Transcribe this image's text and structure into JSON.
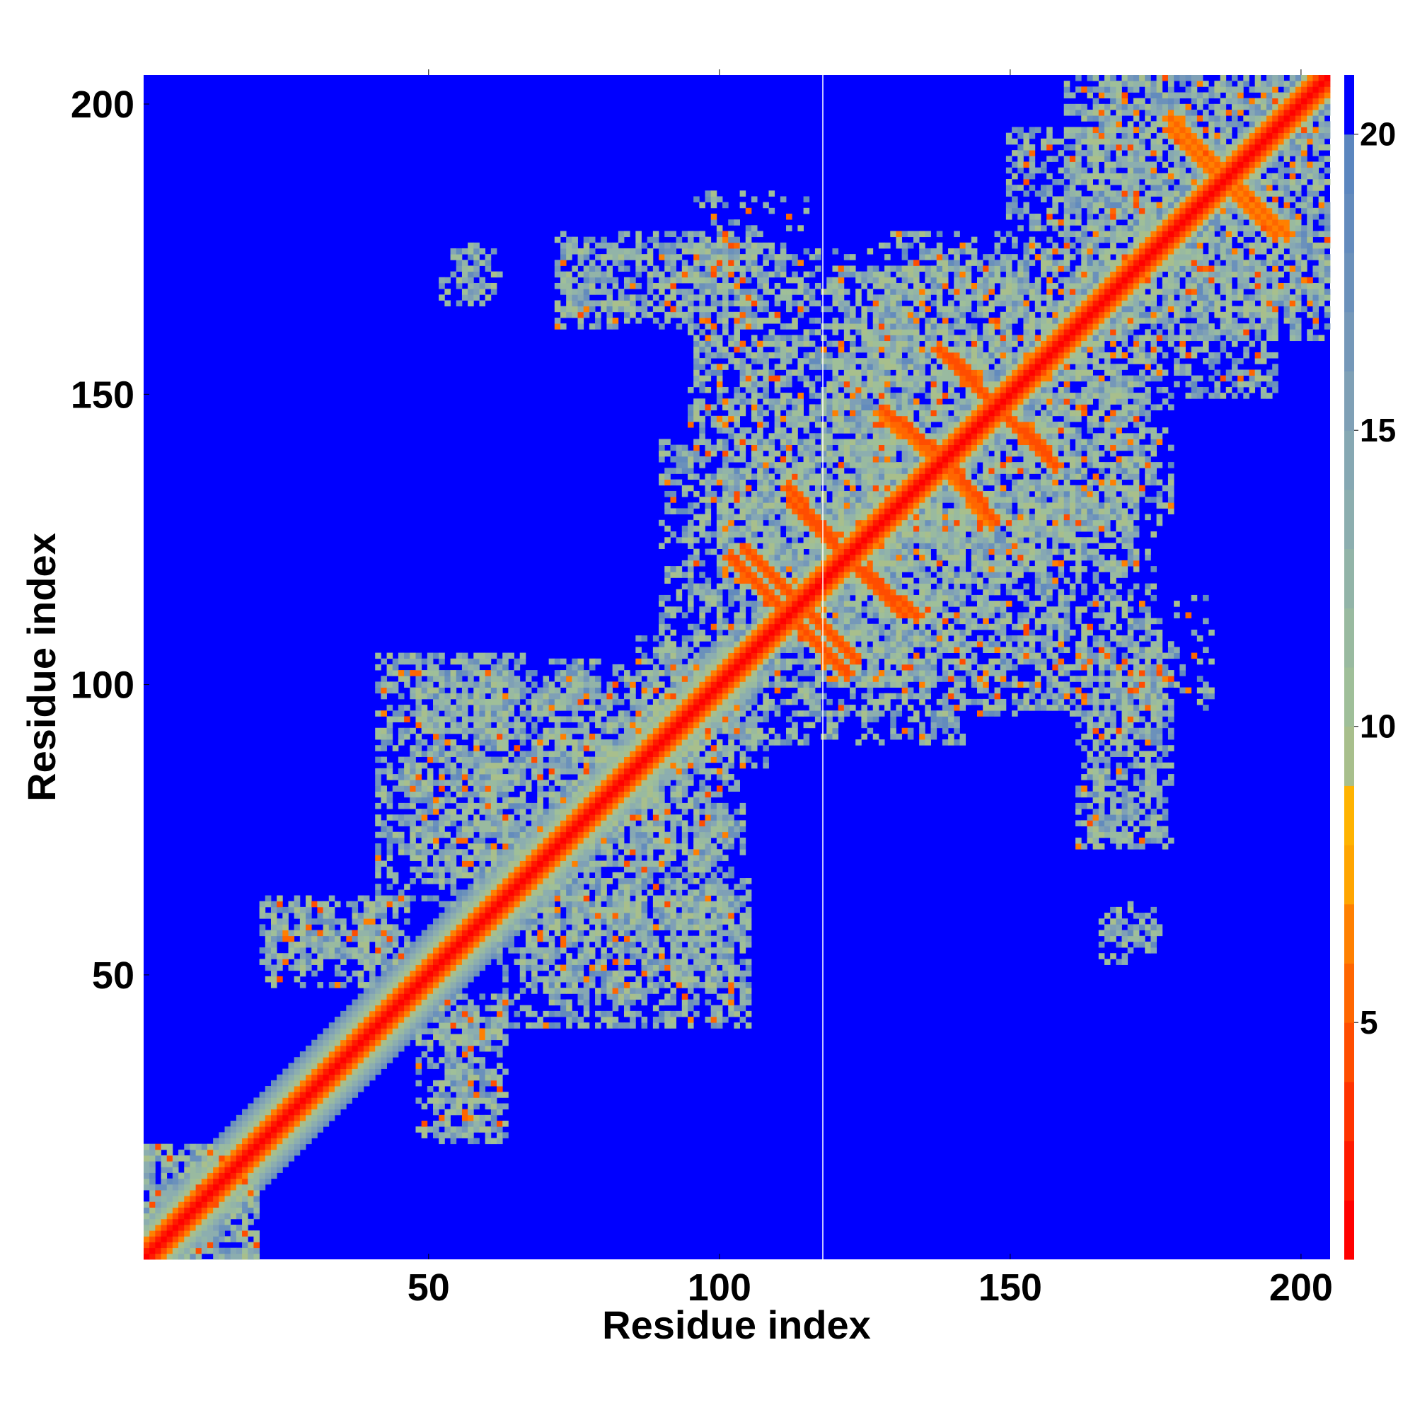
{
  "chart_data": {
    "type": "heatmap",
    "title": "",
    "xlabel": "Residue index",
    "ylabel": "Residue index",
    "xlim": [
      1,
      205
    ],
    "ylim": [
      1,
      205
    ],
    "x_ticks": [
      50,
      100,
      150,
      200
    ],
    "y_ticks": [
      50,
      100,
      150,
      200
    ],
    "x_tick_labels": [
      "50",
      "100",
      "150",
      "200"
    ],
    "y_tick_labels": [
      "50",
      "100",
      "150",
      "200"
    ],
    "colorbar": {
      "range": [
        1,
        21
      ],
      "ticks": [
        5,
        10,
        15,
        20
      ],
      "tick_labels": [
        "5",
        "10",
        "15",
        "20"
      ],
      "levels": [
        {
          "upper": 2,
          "color": "#ff0000"
        },
        {
          "upper": 3,
          "color": "#ff1a00"
        },
        {
          "upper": 4,
          "color": "#ff3300"
        },
        {
          "upper": 5,
          "color": "#ff4d00"
        },
        {
          "upper": 6,
          "color": "#ff6600"
        },
        {
          "upper": 7,
          "color": "#ff8000"
        },
        {
          "upper": 8,
          "color": "#ffa500"
        },
        {
          "upper": 9,
          "color": "#ffb300"
        },
        {
          "upper": 10,
          "color": "#a8bf8c"
        },
        {
          "upper": 11,
          "color": "#9fbf99"
        },
        {
          "upper": 12,
          "color": "#99baa0"
        },
        {
          "upper": 13,
          "color": "#92b4a8"
        },
        {
          "upper": 14,
          "color": "#8caeaf"
        },
        {
          "upper": 15,
          "color": "#86a8b3"
        },
        {
          "upper": 16,
          "color": "#7fa0b6"
        },
        {
          "upper": 17,
          "color": "#7598b9"
        },
        {
          "upper": 18,
          "color": "#6b91bb"
        },
        {
          "upper": 19,
          "color": "#638bbd"
        },
        {
          "upper": 20,
          "color": "#5b86bf"
        },
        {
          "upper": 21,
          "color": "#0000ff"
        }
      ]
    },
    "background_color": "#0000ff",
    "diagonal": {
      "start": 1,
      "end": 205,
      "value": 1
    },
    "diagonal_band_segments": [
      {
        "start": 1,
        "end": 100,
        "halfwidth": 8
      },
      {
        "start": 100,
        "end": 205,
        "halfwidth": 5
      }
    ],
    "off_diagonal_contacts": [
      {
        "x_from": 112,
        "y_from": 132,
        "x_to": 122,
        "y_to": 122,
        "value": 5
      },
      {
        "x_from": 104,
        "y_from": 124,
        "x_to": 112,
        "y_to": 116,
        "value": 5
      },
      {
        "x_from": 112,
        "y_from": 112,
        "x_to": 122,
        "y_to": 102,
        "value": 5
      },
      {
        "x_from": 122,
        "y_from": 122,
        "x_to": 134,
        "y_to": 112,
        "value": 5
      },
      {
        "x_from": 128,
        "y_from": 148,
        "x_to": 138,
        "y_to": 140,
        "value": 5
      },
      {
        "x_from": 138,
        "y_from": 138,
        "x_to": 147,
        "y_to": 128,
        "value": 6
      },
      {
        "x_from": 140,
        "y_from": 157,
        "x_to": 148,
        "y_to": 148,
        "value": 5
      },
      {
        "x_from": 148,
        "y_from": 148,
        "x_to": 158,
        "y_to": 138,
        "value": 5
      },
      {
        "x_from": 178,
        "y_from": 196,
        "x_to": 188,
        "y_to": 186,
        "value": 6
      },
      {
        "x_from": 188,
        "y_from": 188,
        "x_to": 198,
        "y_to": 178,
        "value": 6
      },
      {
        "x_from": 164,
        "y_from": 166,
        "x_to": 172,
        "y_to": 172,
        "value": 6
      }
    ],
    "medium_regions": [
      {
        "x": [
          1,
          20
        ],
        "y": [
          1,
          20
        ],
        "density": 0.55
      },
      {
        "x": [
          48,
          62
        ],
        "y": [
          22,
          42
        ],
        "density": 0.55
      },
      {
        "x": [
          41,
          66
        ],
        "y": [
          62,
          105
        ],
        "density": 0.5
      },
      {
        "x": [
          21,
          46
        ],
        "y": [
          52,
          63
        ],
        "density": 0.55
      },
      {
        "x": [
          68,
          104
        ],
        "y": [
          47,
          63
        ],
        "density": 0.5
      },
      {
        "x": [
          58,
          90
        ],
        "y": [
          68,
          102
        ],
        "density": 0.45
      },
      {
        "x": [
          86,
          104
        ],
        "y": [
          70,
          108
        ],
        "density": 0.45
      },
      {
        "x": [
          90,
          132
        ],
        "y": [
          100,
          142
        ],
        "density": 0.45
      },
      {
        "x": [
          118,
          160
        ],
        "y": [
          100,
          132
        ],
        "density": 0.4
      },
      {
        "x": [
          122,
          172
        ],
        "y": [
          120,
          162
        ],
        "density": 0.4
      },
      {
        "x": [
          150,
          178
        ],
        "y": [
          128,
          150
        ],
        "density": 0.35
      },
      {
        "x": [
          162,
          178
        ],
        "y": [
          72,
          107
        ],
        "density": 0.45
      },
      {
        "x": [
          166,
          176
        ],
        "y": [
          52,
          60
        ],
        "density": 0.4
      },
      {
        "x": [
          72,
          108
        ],
        "y": [
          163,
          176
        ],
        "density": 0.4
      },
      {
        "x": [
          95,
          150
        ],
        "y": [
          140,
          175
        ],
        "density": 0.3
      },
      {
        "x": [
          160,
          205
        ],
        "y": [
          165,
          205
        ],
        "density": 0.45
      },
      {
        "x": [
          152,
          196
        ],
        "y": [
          150,
          175
        ],
        "density": 0.4
      },
      {
        "x": [
          55,
          62
        ],
        "y": [
          168,
          176
        ],
        "density": 0.3
      },
      {
        "x": [
          130,
          185
        ],
        "y": [
          95,
          115
        ],
        "density": 0.25
      }
    ],
    "grid": false,
    "legend": "none"
  }
}
